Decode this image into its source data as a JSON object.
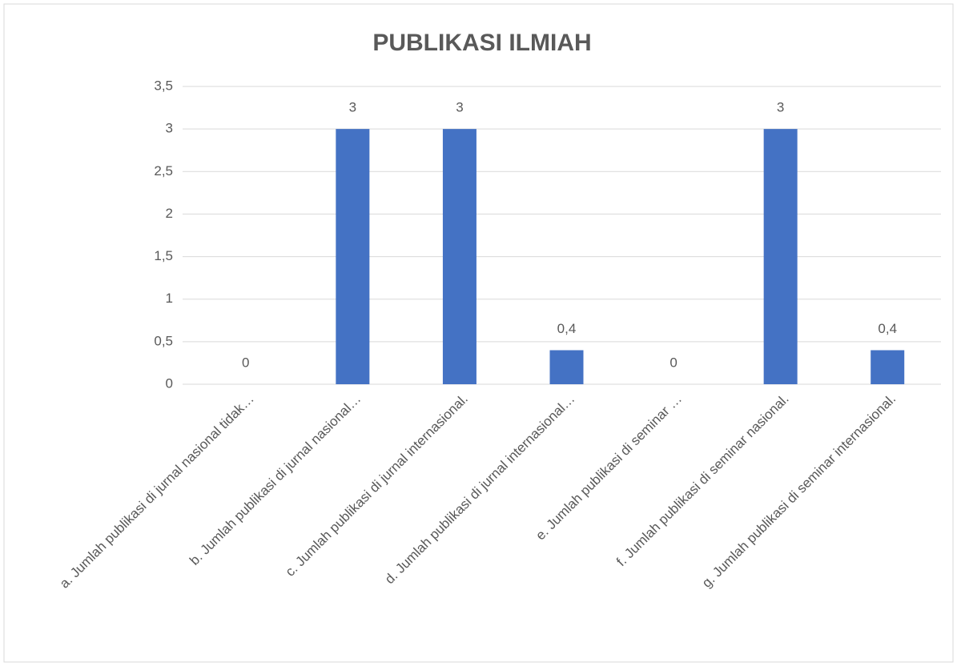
{
  "chart_data": {
    "type": "bar",
    "title": "PUBLIKASI ILMIAH",
    "categories": [
      "a. Jumlah publikasi di jurnal nasional tidak…",
      "b. Jumlah publikasi di jurnal nasional…",
      "c. Jumlah publikasi di jurnal internasional.",
      "d. Jumlah publikasi di jurnal internasional…",
      "e. Jumlah publikasi di seminar …",
      "f. Jumlah publikasi di seminar nasional.",
      "g. Jumlah publikasi di seminar internasional."
    ],
    "values": [
      0,
      3,
      3,
      0.4,
      0,
      3,
      0.4
    ],
    "value_labels": [
      "0",
      "3",
      "3",
      "0,4",
      "0",
      "3",
      "0,4"
    ],
    "color": "#4472c4",
    "ylim": [
      0,
      3.5
    ],
    "yticks": [
      0,
      {
        "value": 0.5,
        "label": "0,5"
      },
      1,
      {
        "value": 1.5,
        "label": "1,5"
      },
      2,
      {
        "value": 2.5,
        "label": "2,5"
      },
      3,
      {
        "value": 3.5,
        "label": "3,5"
      }
    ],
    "grid": true
  }
}
